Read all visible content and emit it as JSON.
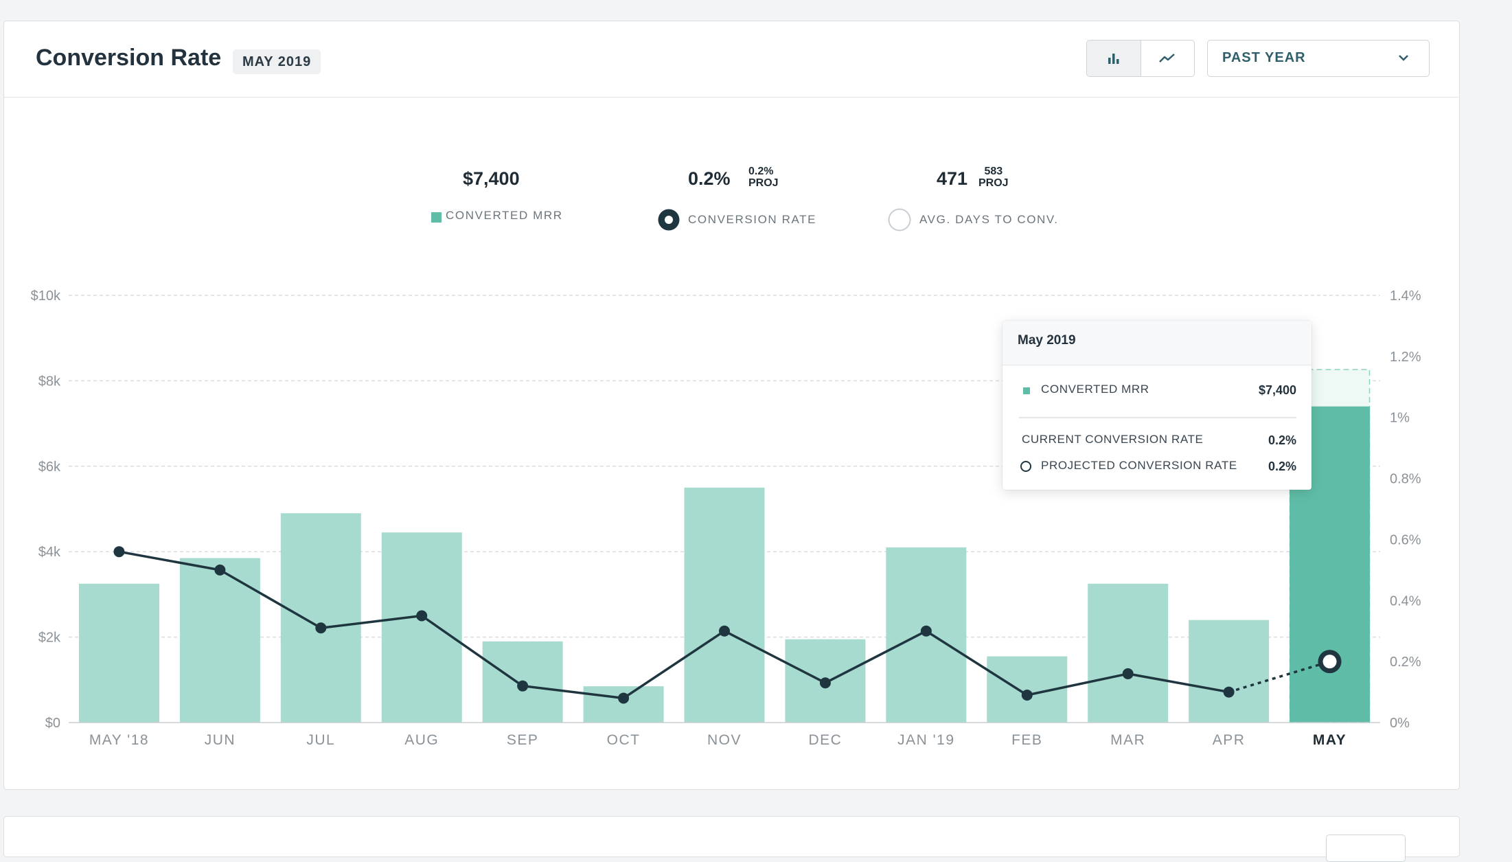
{
  "header": {
    "title": "Conversion Rate",
    "date_badge": "MAY 2019",
    "view_toggle": {
      "bar_icon": "bar-chart-icon",
      "line_icon": "line-chart-icon",
      "active": "bar"
    },
    "range": {
      "label": "PAST YEAR",
      "icon": "chevron-down-icon"
    }
  },
  "metrics": {
    "converted_mrr": {
      "value": "$7,400",
      "label": "CONVERTED MRR"
    },
    "conversion_rate": {
      "value": "0.2%",
      "proj_value": "0.2%",
      "proj_label": "PROJ",
      "label": "CONVERSION RATE"
    },
    "avg_days": {
      "value": "471",
      "proj_value": "583",
      "proj_label": "PROJ",
      "label": "AVG. DAYS TO CONV."
    }
  },
  "colors": {
    "bar": "#a8dbcf",
    "bar_highlight": "#5fbda7",
    "line": "#1f3640",
    "grid": "#d9dde0",
    "axis_text": "#8a9298"
  },
  "chart_data": {
    "type": "bar",
    "categories": [
      "MAY '18",
      "JUN",
      "JUL",
      "AUG",
      "SEP",
      "OCT",
      "NOV",
      "DEC",
      "JAN '19",
      "FEB",
      "MAR",
      "APR",
      "MAY"
    ],
    "series": [
      {
        "name": "CONVERTED MRR",
        "type": "bar",
        "axis": "left",
        "values": [
          3250,
          3850,
          4900,
          4450,
          1900,
          850,
          5500,
          1950,
          4100,
          1550,
          3250,
          2400,
          7400
        ]
      },
      {
        "name": "CONVERSION RATE",
        "type": "line",
        "axis": "right",
        "values": [
          0.56,
          0.5,
          0.31,
          0.35,
          0.12,
          0.08,
          0.3,
          0.13,
          0.3,
          0.09,
          0.16,
          0.1,
          0.2
        ]
      }
    ],
    "highlight_index": 12,
    "projected_segment": [
      11,
      12
    ],
    "y_left": {
      "ticks": [
        "$0",
        "$2k",
        "$4k",
        "$6k",
        "$8k",
        "$10k"
      ],
      "range": [
        0,
        10000
      ]
    },
    "y_right": {
      "ticks": [
        "0%",
        "0.2%",
        "0.4%",
        "0.6%",
        "0.8%",
        "1%",
        "1.2%",
        "1.4%"
      ],
      "range": [
        0,
        1.4
      ]
    },
    "grid": true
  },
  "tooltip": {
    "title": "May 2019",
    "converted_mrr_label": "CONVERTED MRR",
    "converted_mrr_value": "$7,400",
    "current_rate_label": "CURRENT CONVERSION RATE",
    "current_rate_value": "0.2%",
    "projected_rate_label": "PROJECTED CONVERSION RATE",
    "projected_rate_value": "0.2%"
  }
}
